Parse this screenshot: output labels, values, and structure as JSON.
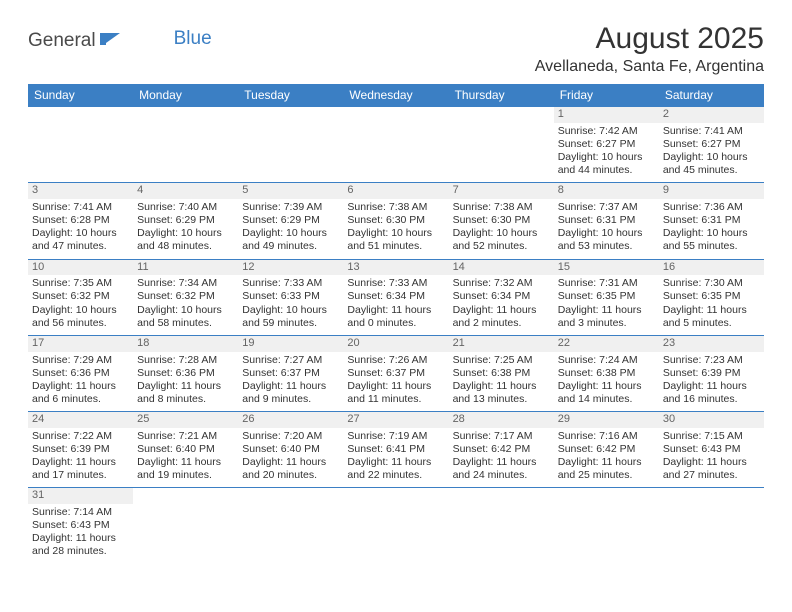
{
  "logo": {
    "part1": "General",
    "part2": "Blue"
  },
  "title": "August 2025",
  "location": "Avellaneda, Santa Fe, Argentina",
  "colors": {
    "header_bg": "#3b7fc4",
    "header_text": "#ffffff",
    "daynum_bg": "#f0f0f0",
    "daynum_text": "#646464",
    "row_border": "#3b7fc4",
    "body_text": "#333333",
    "page_bg": "#ffffff"
  },
  "day_headers": [
    "Sunday",
    "Monday",
    "Tuesday",
    "Wednesday",
    "Thursday",
    "Friday",
    "Saturday"
  ],
  "weeks": [
    [
      null,
      null,
      null,
      null,
      null,
      {
        "n": "1",
        "sr": "Sunrise: 7:42 AM",
        "ss": "Sunset: 6:27 PM",
        "dl": "Daylight: 10 hours and 44 minutes."
      },
      {
        "n": "2",
        "sr": "Sunrise: 7:41 AM",
        "ss": "Sunset: 6:27 PM",
        "dl": "Daylight: 10 hours and 45 minutes."
      }
    ],
    [
      {
        "n": "3",
        "sr": "Sunrise: 7:41 AM",
        "ss": "Sunset: 6:28 PM",
        "dl": "Daylight: 10 hours and 47 minutes."
      },
      {
        "n": "4",
        "sr": "Sunrise: 7:40 AM",
        "ss": "Sunset: 6:29 PM",
        "dl": "Daylight: 10 hours and 48 minutes."
      },
      {
        "n": "5",
        "sr": "Sunrise: 7:39 AM",
        "ss": "Sunset: 6:29 PM",
        "dl": "Daylight: 10 hours and 49 minutes."
      },
      {
        "n": "6",
        "sr": "Sunrise: 7:38 AM",
        "ss": "Sunset: 6:30 PM",
        "dl": "Daylight: 10 hours and 51 minutes."
      },
      {
        "n": "7",
        "sr": "Sunrise: 7:38 AM",
        "ss": "Sunset: 6:30 PM",
        "dl": "Daylight: 10 hours and 52 minutes."
      },
      {
        "n": "8",
        "sr": "Sunrise: 7:37 AM",
        "ss": "Sunset: 6:31 PM",
        "dl": "Daylight: 10 hours and 53 minutes."
      },
      {
        "n": "9",
        "sr": "Sunrise: 7:36 AM",
        "ss": "Sunset: 6:31 PM",
        "dl": "Daylight: 10 hours and 55 minutes."
      }
    ],
    [
      {
        "n": "10",
        "sr": "Sunrise: 7:35 AM",
        "ss": "Sunset: 6:32 PM",
        "dl": "Daylight: 10 hours and 56 minutes."
      },
      {
        "n": "11",
        "sr": "Sunrise: 7:34 AM",
        "ss": "Sunset: 6:32 PM",
        "dl": "Daylight: 10 hours and 58 minutes."
      },
      {
        "n": "12",
        "sr": "Sunrise: 7:33 AM",
        "ss": "Sunset: 6:33 PM",
        "dl": "Daylight: 10 hours and 59 minutes."
      },
      {
        "n": "13",
        "sr": "Sunrise: 7:33 AM",
        "ss": "Sunset: 6:34 PM",
        "dl": "Daylight: 11 hours and 0 minutes."
      },
      {
        "n": "14",
        "sr": "Sunrise: 7:32 AM",
        "ss": "Sunset: 6:34 PM",
        "dl": "Daylight: 11 hours and 2 minutes."
      },
      {
        "n": "15",
        "sr": "Sunrise: 7:31 AM",
        "ss": "Sunset: 6:35 PM",
        "dl": "Daylight: 11 hours and 3 minutes."
      },
      {
        "n": "16",
        "sr": "Sunrise: 7:30 AM",
        "ss": "Sunset: 6:35 PM",
        "dl": "Daylight: 11 hours and 5 minutes."
      }
    ],
    [
      {
        "n": "17",
        "sr": "Sunrise: 7:29 AM",
        "ss": "Sunset: 6:36 PM",
        "dl": "Daylight: 11 hours and 6 minutes."
      },
      {
        "n": "18",
        "sr": "Sunrise: 7:28 AM",
        "ss": "Sunset: 6:36 PM",
        "dl": "Daylight: 11 hours and 8 minutes."
      },
      {
        "n": "19",
        "sr": "Sunrise: 7:27 AM",
        "ss": "Sunset: 6:37 PM",
        "dl": "Daylight: 11 hours and 9 minutes."
      },
      {
        "n": "20",
        "sr": "Sunrise: 7:26 AM",
        "ss": "Sunset: 6:37 PM",
        "dl": "Daylight: 11 hours and 11 minutes."
      },
      {
        "n": "21",
        "sr": "Sunrise: 7:25 AM",
        "ss": "Sunset: 6:38 PM",
        "dl": "Daylight: 11 hours and 13 minutes."
      },
      {
        "n": "22",
        "sr": "Sunrise: 7:24 AM",
        "ss": "Sunset: 6:38 PM",
        "dl": "Daylight: 11 hours and 14 minutes."
      },
      {
        "n": "23",
        "sr": "Sunrise: 7:23 AM",
        "ss": "Sunset: 6:39 PM",
        "dl": "Daylight: 11 hours and 16 minutes."
      }
    ],
    [
      {
        "n": "24",
        "sr": "Sunrise: 7:22 AM",
        "ss": "Sunset: 6:39 PM",
        "dl": "Daylight: 11 hours and 17 minutes."
      },
      {
        "n": "25",
        "sr": "Sunrise: 7:21 AM",
        "ss": "Sunset: 6:40 PM",
        "dl": "Daylight: 11 hours and 19 minutes."
      },
      {
        "n": "26",
        "sr": "Sunrise: 7:20 AM",
        "ss": "Sunset: 6:40 PM",
        "dl": "Daylight: 11 hours and 20 minutes."
      },
      {
        "n": "27",
        "sr": "Sunrise: 7:19 AM",
        "ss": "Sunset: 6:41 PM",
        "dl": "Daylight: 11 hours and 22 minutes."
      },
      {
        "n": "28",
        "sr": "Sunrise: 7:17 AM",
        "ss": "Sunset: 6:42 PM",
        "dl": "Daylight: 11 hours and 24 minutes."
      },
      {
        "n": "29",
        "sr": "Sunrise: 7:16 AM",
        "ss": "Sunset: 6:42 PM",
        "dl": "Daylight: 11 hours and 25 minutes."
      },
      {
        "n": "30",
        "sr": "Sunrise: 7:15 AM",
        "ss": "Sunset: 6:43 PM",
        "dl": "Daylight: 11 hours and 27 minutes."
      }
    ],
    [
      {
        "n": "31",
        "sr": "Sunrise: 7:14 AM",
        "ss": "Sunset: 6:43 PM",
        "dl": "Daylight: 11 hours and 28 minutes."
      },
      null,
      null,
      null,
      null,
      null,
      null
    ]
  ]
}
